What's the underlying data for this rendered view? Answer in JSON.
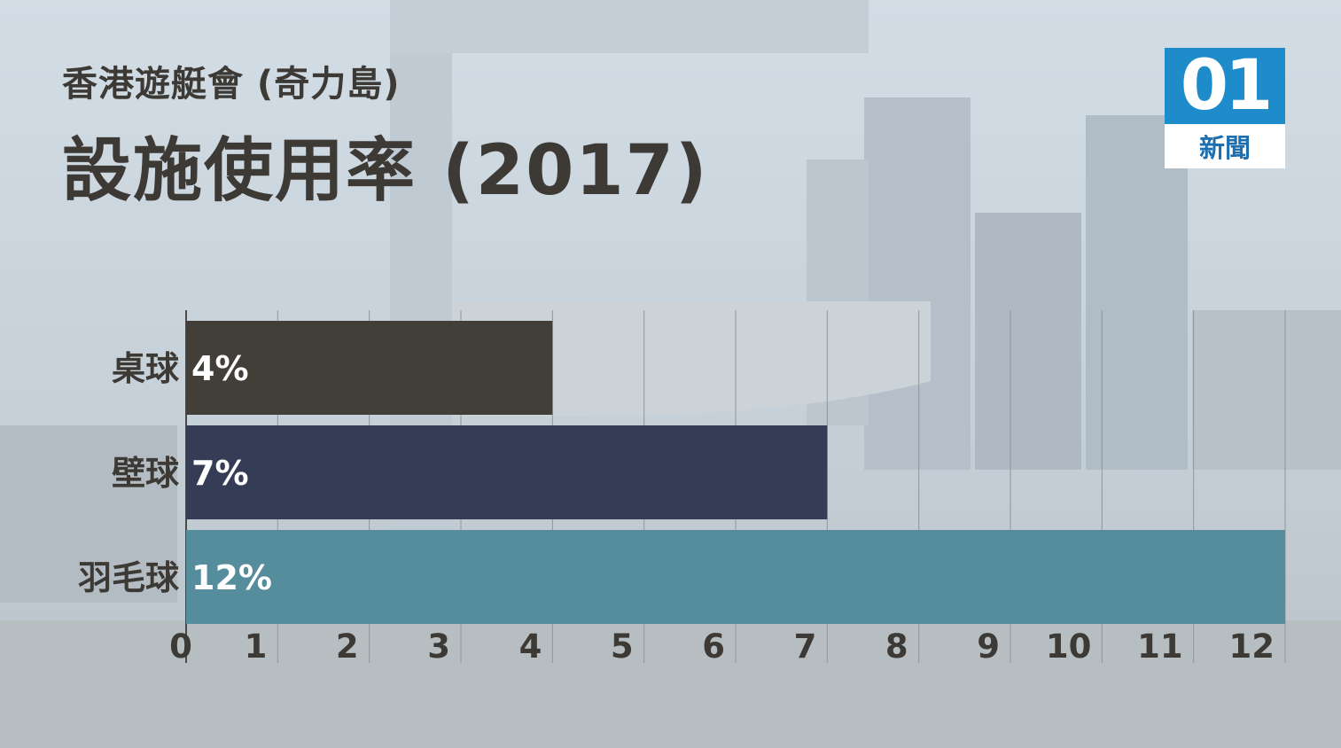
{
  "header": {
    "subtitle": "香港遊艇會 (奇力島)",
    "title": "設施使用率 (2017)"
  },
  "logo": {
    "mark": "01",
    "text": "新聞",
    "color_top": "#1e8bcb",
    "color_text": "#1e6fb0"
  },
  "chart_data": {
    "type": "bar",
    "orientation": "horizontal",
    "title": "設施使用率 (2017)",
    "categories": [
      "桌球",
      "壁球",
      "羽毛球"
    ],
    "values": [
      4,
      7,
      12
    ],
    "value_labels": [
      "4%",
      "7%",
      "12%"
    ],
    "colors": [
      "#423e38",
      "#343d55",
      "#568d9d"
    ],
    "xlim": [
      0,
      12
    ],
    "x_ticks": [
      "0",
      "1",
      "2",
      "3",
      "4",
      "5",
      "6",
      "7",
      "8",
      "9",
      "10",
      "11",
      "12"
    ],
    "grid": true,
    "xlabel": "",
    "ylabel": ""
  }
}
